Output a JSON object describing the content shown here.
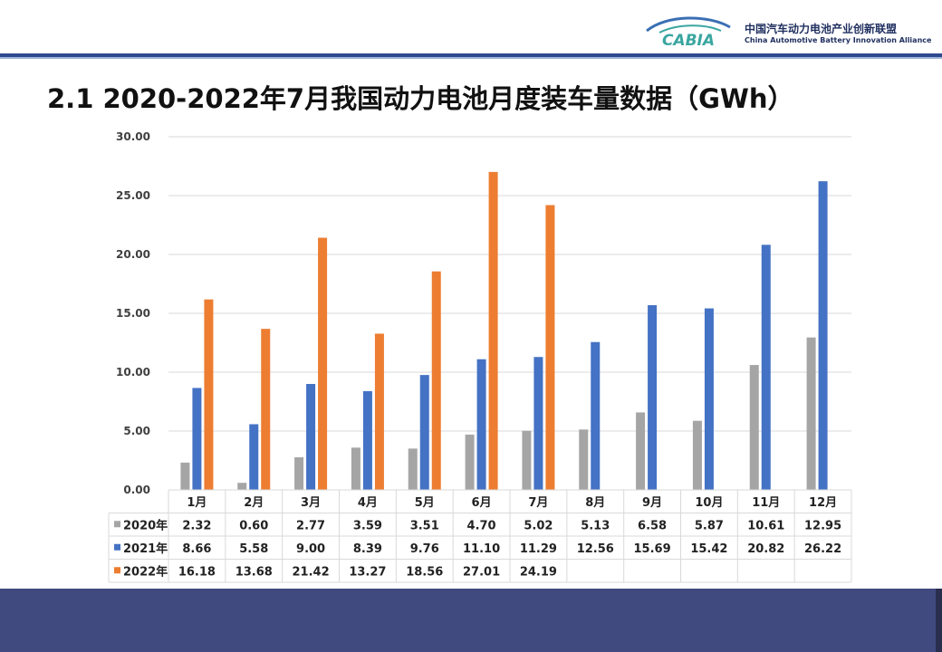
{
  "header": {
    "logo_text": "CABIA",
    "org_name_cn": "中国汽车动力电池产业创新联盟",
    "org_name_en": "China Automotive Battery Innovation Alliance"
  },
  "slide_title": "2.1 2020-2022年7月我国动力电池月度装车量数据（GWh）",
  "colors": {
    "2020年": "#a5a5a5",
    "2021年": "#4472c4",
    "2022年": "#ed7d31",
    "header_bar": "#2e4a8f",
    "footer": "#404a7f"
  },
  "chart_data": {
    "type": "bar",
    "title": "",
    "xlabel": "",
    "ylabel": "",
    "ylim": [
      0,
      30
    ],
    "yticks": [
      "0.00",
      "5.00",
      "10.00",
      "15.00",
      "20.00",
      "25.00",
      "30.00"
    ],
    "grid": true,
    "legend": "data-table",
    "categories": [
      "1月",
      "2月",
      "3月",
      "4月",
      "5月",
      "6月",
      "7月",
      "8月",
      "9月",
      "10月",
      "11月",
      "12月"
    ],
    "series": [
      {
        "name": "2020年",
        "color": "#a5a5a5",
        "values": [
          2.32,
          0.6,
          2.77,
          3.59,
          3.51,
          4.7,
          5.02,
          5.13,
          6.58,
          5.87,
          10.61,
          12.95
        ],
        "labels": [
          "2.32",
          "0.60",
          "2.77",
          "3.59",
          "3.51",
          "4.70",
          "5.02",
          "5.13",
          "6.58",
          "5.87",
          "10.61",
          "12.95"
        ]
      },
      {
        "name": "2021年",
        "color": "#4472c4",
        "values": [
          8.66,
          5.58,
          9.0,
          8.39,
          9.76,
          11.1,
          11.29,
          12.56,
          15.69,
          15.42,
          20.82,
          26.22
        ],
        "labels": [
          "8.66",
          "5.58",
          "9.00",
          "8.39",
          "9.76",
          "11.10",
          "11.29",
          "12.56",
          "15.69",
          "15.42",
          "20.82",
          "26.22"
        ]
      },
      {
        "name": "2022年",
        "color": "#ed7d31",
        "values": [
          16.18,
          13.68,
          21.42,
          13.27,
          18.56,
          27.01,
          24.19,
          null,
          null,
          null,
          null,
          null
        ],
        "labels": [
          "16.18",
          "13.68",
          "21.42",
          "13.27",
          "18.56",
          "27.01",
          "24.19",
          "",
          "",
          "",
          "",
          ""
        ]
      }
    ]
  }
}
